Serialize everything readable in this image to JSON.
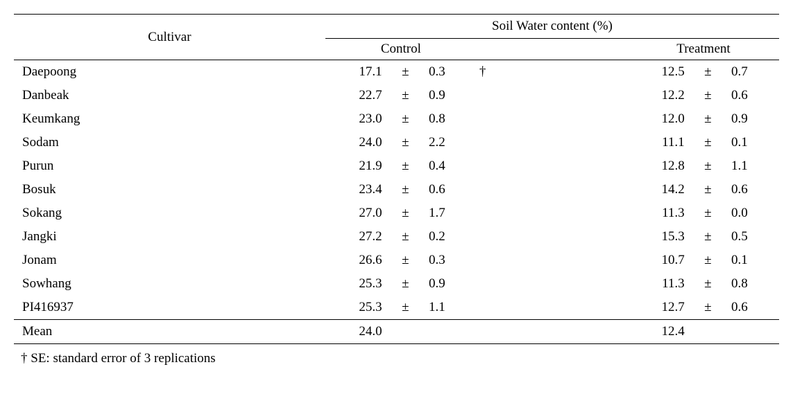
{
  "headers": {
    "cultivar": "Cultivar",
    "swc": "Soil Water content (%)",
    "control": "Control",
    "treatment": "Treatment"
  },
  "rows": [
    {
      "cultivar": "Daepoong",
      "control_val": "17.1",
      "control_pm": "±",
      "control_err": "0.3",
      "dagger": "†",
      "treat_val": "12.5",
      "treat_pm": "±",
      "treat_err": "0.7"
    },
    {
      "cultivar": "Danbeak",
      "control_val": "22.7",
      "control_pm": "±",
      "control_err": "0.9",
      "dagger": "",
      "treat_val": "12.2",
      "treat_pm": "±",
      "treat_err": "0.6"
    },
    {
      "cultivar": "Keumkang",
      "control_val": "23.0",
      "control_pm": "±",
      "control_err": "0.8",
      "dagger": "",
      "treat_val": "12.0",
      "treat_pm": "±",
      "treat_err": "0.9"
    },
    {
      "cultivar": "Sodam",
      "control_val": "24.0",
      "control_pm": "±",
      "control_err": "2.2",
      "dagger": "",
      "treat_val": "11.1",
      "treat_pm": "±",
      "treat_err": "0.1"
    },
    {
      "cultivar": "Purun",
      "control_val": "21.9",
      "control_pm": "±",
      "control_err": "0.4",
      "dagger": "",
      "treat_val": "12.8",
      "treat_pm": "±",
      "treat_err": "1.1"
    },
    {
      "cultivar": "Bosuk",
      "control_val": "23.4",
      "control_pm": "±",
      "control_err": "0.6",
      "dagger": "",
      "treat_val": "14.2",
      "treat_pm": "±",
      "treat_err": "0.6"
    },
    {
      "cultivar": "Sokang",
      "control_val": "27.0",
      "control_pm": "±",
      "control_err": "1.7",
      "dagger": "",
      "treat_val": "11.3",
      "treat_pm": "±",
      "treat_err": "0.0"
    },
    {
      "cultivar": "Jangki",
      "control_val": "27.2",
      "control_pm": "±",
      "control_err": "0.2",
      "dagger": "",
      "treat_val": "15.3",
      "treat_pm": "±",
      "treat_err": "0.5"
    },
    {
      "cultivar": "Jonam",
      "control_val": "26.6",
      "control_pm": "±",
      "control_err": "0.3",
      "dagger": "",
      "treat_val": "10.7",
      "treat_pm": "±",
      "treat_err": "0.1"
    },
    {
      "cultivar": "Sowhang",
      "control_val": "25.3",
      "control_pm": "±",
      "control_err": "0.9",
      "dagger": "",
      "treat_val": "11.3",
      "treat_pm": "±",
      "treat_err": "0.8"
    },
    {
      "cultivar": "PI416937",
      "control_val": "25.3",
      "control_pm": "±",
      "control_err": "1.1",
      "dagger": "",
      "treat_val": "12.7",
      "treat_pm": "±",
      "treat_err": "0.6"
    }
  ],
  "mean": {
    "label": "Mean",
    "control_val": "24.0",
    "treat_val": "12.4"
  },
  "footnote": "† SE: standard error of 3 replications"
}
